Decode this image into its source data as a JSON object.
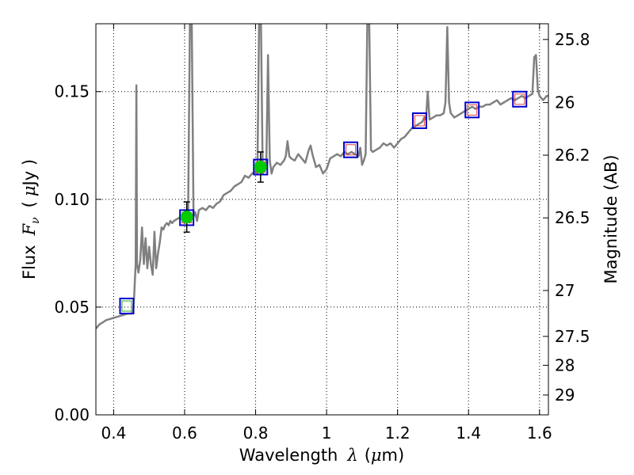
{
  "chart_data": {
    "type": "line",
    "xlabel": {
      "prefix": "Wavelength",
      "symbol": "λ",
      "unit_open": "(",
      "unit_mu": "μ",
      "unit_rest": "m)"
    },
    "ylabel": {
      "prefix": "Flux",
      "symbol": "F",
      "subscript": "ν",
      "unit_open": "(",
      "unit_mu": "μ",
      "unit_rest": "Jy )"
    },
    "y2label": "Magnitude (AB)",
    "xlim": [
      0.35,
      1.625
    ],
    "ylim": [
      0.0,
      0.1815
    ],
    "x_ticks": [
      0.4,
      0.6,
      0.8,
      1.0,
      1.2,
      1.4,
      1.6
    ],
    "x_tick_labels": [
      "0.4",
      "0.6",
      "0.8",
      "1",
      "1.2",
      "1.4",
      "1.6"
    ],
    "y_ticks": [
      0.0,
      0.05,
      0.1,
      0.15
    ],
    "y_tick_labels": [
      "0.00",
      "0.05",
      "0.10",
      "0.15"
    ],
    "y2_ticks": [
      {
        "label": "25.8",
        "flux": 0.1742
      },
      {
        "label": "26",
        "flux": 0.1449
      },
      {
        "label": "26.2",
        "flux": 0.1205
      },
      {
        "label": "26.5",
        "flux": 0.0914
      },
      {
        "label": "27",
        "flux": 0.0577
      },
      {
        "label": "27.5",
        "flux": 0.0364
      },
      {
        "label": "28",
        "flux": 0.023
      },
      {
        "label": "29",
        "flux": 0.0092
      }
    ],
    "grid": true,
    "colors": {
      "spectrum": "#808080",
      "model_box": "#0000cc",
      "inner_box": "#dd4444",
      "inner_box_first": "#22aa22",
      "observed": "#00cc00",
      "errorbar": "#000000",
      "grid": "#000000",
      "axes": "#000000"
    },
    "spectrum": [
      [
        0.35,
        0.04
      ],
      [
        0.36,
        0.042
      ],
      [
        0.37,
        0.043
      ],
      [
        0.38,
        0.044
      ],
      [
        0.39,
        0.0445
      ],
      [
        0.4,
        0.045
      ],
      [
        0.41,
        0.0455
      ],
      [
        0.42,
        0.046
      ],
      [
        0.43,
        0.0465
      ],
      [
        0.44,
        0.047
      ],
      [
        0.45,
        0.047
      ],
      [
        0.455,
        0.048
      ],
      [
        0.458,
        0.056
      ],
      [
        0.462,
        0.07
      ],
      [
        0.464,
        0.153
      ],
      [
        0.466,
        0.07
      ],
      [
        0.47,
        0.066
      ],
      [
        0.475,
        0.072
      ],
      [
        0.48,
        0.087
      ],
      [
        0.485,
        0.07
      ],
      [
        0.49,
        0.082
      ],
      [
        0.495,
        0.068
      ],
      [
        0.5,
        0.078
      ],
      [
        0.505,
        0.07
      ],
      [
        0.51,
        0.065
      ],
      [
        0.515,
        0.085
      ],
      [
        0.52,
        0.068
      ],
      [
        0.525,
        0.075
      ],
      [
        0.53,
        0.08
      ],
      [
        0.535,
        0.087
      ],
      [
        0.54,
        0.086
      ],
      [
        0.545,
        0.088
      ],
      [
        0.55,
        0.089
      ],
      [
        0.555,
        0.088
      ],
      [
        0.56,
        0.09
      ],
      [
        0.565,
        0.089
      ],
      [
        0.57,
        0.09
      ],
      [
        0.58,
        0.091
      ],
      [
        0.59,
        0.092
      ],
      [
        0.6,
        0.0925
      ],
      [
        0.605,
        0.093
      ],
      [
        0.61,
        0.094
      ],
      [
        0.615,
        0.185
      ],
      [
        0.62,
        0.185
      ],
      [
        0.625,
        0.092
      ],
      [
        0.63,
        0.094
      ],
      [
        0.635,
        0.09
      ],
      [
        0.64,
        0.095
      ],
      [
        0.65,
        0.096
      ],
      [
        0.66,
        0.095
      ],
      [
        0.67,
        0.097
      ],
      [
        0.68,
        0.096
      ],
      [
        0.69,
        0.098
      ],
      [
        0.7,
        0.099
      ],
      [
        0.71,
        0.102
      ],
      [
        0.72,
        0.103
      ],
      [
        0.73,
        0.104
      ],
      [
        0.74,
        0.106
      ],
      [
        0.75,
        0.107
      ],
      [
        0.76,
        0.108
      ],
      [
        0.77,
        0.111
      ],
      [
        0.78,
        0.11
      ],
      [
        0.79,
        0.112
      ],
      [
        0.8,
        0.113
      ],
      [
        0.805,
        0.112
      ],
      [
        0.81,
        0.185
      ],
      [
        0.815,
        0.185
      ],
      [
        0.82,
        0.112
      ],
      [
        0.825,
        0.116
      ],
      [
        0.83,
        0.115
      ],
      [
        0.835,
        0.167
      ],
      [
        0.84,
        0.118
      ],
      [
        0.845,
        0.112
      ],
      [
        0.85,
        0.115
      ],
      [
        0.86,
        0.117
      ],
      [
        0.87,
        0.116
      ],
      [
        0.88,
        0.118
      ],
      [
        0.885,
        0.12
      ],
      [
        0.89,
        0.127
      ],
      [
        0.895,
        0.12
      ],
      [
        0.9,
        0.119
      ],
      [
        0.91,
        0.118
      ],
      [
        0.92,
        0.121
      ],
      [
        0.93,
        0.119
      ],
      [
        0.94,
        0.117
      ],
      [
        0.95,
        0.123
      ],
      [
        0.955,
        0.125
      ],
      [
        0.96,
        0.121
      ],
      [
        0.97,
        0.115
      ],
      [
        0.98,
        0.116
      ],
      [
        0.99,
        0.112
      ],
      [
        1.0,
        0.114
      ],
      [
        1.01,
        0.119
      ],
      [
        1.02,
        0.12
      ],
      [
        1.03,
        0.121
      ],
      [
        1.04,
        0.12
      ],
      [
        1.05,
        0.122
      ],
      [
        1.06,
        0.121
      ],
      [
        1.07,
        0.122
      ],
      [
        1.08,
        0.121
      ],
      [
        1.09,
        0.12
      ],
      [
        1.095,
        0.124
      ],
      [
        1.1,
        0.116
      ],
      [
        1.105,
        0.118
      ],
      [
        1.11,
        0.121
      ],
      [
        1.115,
        0.185
      ],
      [
        1.12,
        0.185
      ],
      [
        1.125,
        0.123
      ],
      [
        1.13,
        0.122
      ],
      [
        1.14,
        0.123
      ],
      [
        1.15,
        0.124
      ],
      [
        1.16,
        0.126
      ],
      [
        1.17,
        0.125
      ],
      [
        1.18,
        0.126
      ],
      [
        1.19,
        0.124
      ],
      [
        1.2,
        0.126
      ],
      [
        1.21,
        0.128
      ],
      [
        1.22,
        0.129
      ],
      [
        1.23,
        0.131
      ],
      [
        1.24,
        0.133
      ],
      [
        1.25,
        0.134
      ],
      [
        1.26,
        0.135
      ],
      [
        1.27,
        0.136
      ],
      [
        1.275,
        0.138
      ],
      [
        1.28,
        0.137
      ],
      [
        1.285,
        0.15
      ],
      [
        1.29,
        0.137
      ],
      [
        1.3,
        0.138
      ],
      [
        1.31,
        0.139
      ],
      [
        1.32,
        0.139
      ],
      [
        1.33,
        0.14
      ],
      [
        1.335,
        0.145
      ],
      [
        1.34,
        0.18
      ],
      [
        1.345,
        0.145
      ],
      [
        1.35,
        0.14
      ],
      [
        1.36,
        0.138
      ],
      [
        1.37,
        0.139
      ],
      [
        1.38,
        0.14
      ],
      [
        1.39,
        0.141
      ],
      [
        1.4,
        0.142
      ],
      [
        1.41,
        0.143
      ],
      [
        1.42,
        0.142
      ],
      [
        1.43,
        0.143
      ],
      [
        1.44,
        0.143
      ],
      [
        1.45,
        0.144
      ],
      [
        1.46,
        0.144
      ],
      [
        1.47,
        0.145
      ],
      [
        1.48,
        0.146
      ],
      [
        1.49,
        0.144
      ],
      [
        1.5,
        0.145
      ],
      [
        1.51,
        0.146
      ],
      [
        1.52,
        0.147
      ],
      [
        1.53,
        0.146
      ],
      [
        1.54,
        0.147
      ],
      [
        1.55,
        0.148
      ],
      [
        1.56,
        0.147
      ],
      [
        1.57,
        0.148
      ],
      [
        1.58,
        0.149
      ],
      [
        1.585,
        0.166
      ],
      [
        1.59,
        0.167
      ],
      [
        1.595,
        0.151
      ],
      [
        1.6,
        0.148
      ],
      [
        1.61,
        0.146
      ],
      [
        1.62,
        0.148
      ],
      [
        1.625,
        0.148
      ]
    ],
    "model_points": [
      {
        "x": 0.437,
        "y": 0.0505
      },
      {
        "x": 0.606,
        "y": 0.0915
      },
      {
        "x": 0.814,
        "y": 0.115
      },
      {
        "x": 1.068,
        "y": 0.123
      },
      {
        "x": 1.262,
        "y": 0.1365
      },
      {
        "x": 1.41,
        "y": 0.1415
      },
      {
        "x": 1.544,
        "y": 0.1465
      }
    ],
    "observed_points": [
      {
        "x": 0.606,
        "y": 0.0918,
        "err": 0.007
      },
      {
        "x": 0.814,
        "y": 0.115,
        "err": 0.007
      }
    ]
  }
}
